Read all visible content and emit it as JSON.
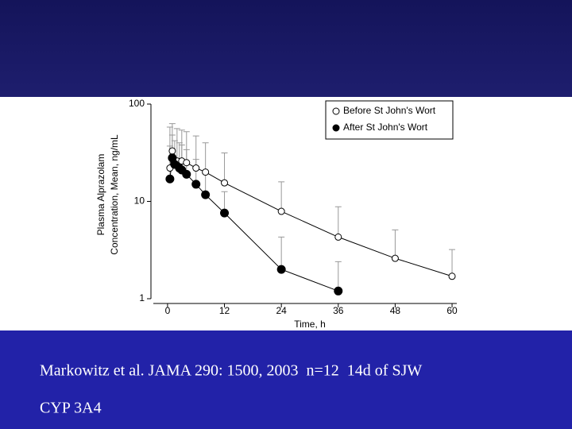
{
  "chart_data": {
    "type": "line",
    "y_label": [
      "Plasma Alprazolam",
      "Concentration, Mean, ng/mL"
    ],
    "x_label": "Time, h",
    "xlim": [
      -3,
      61
    ],
    "xticks": [
      0,
      12,
      24,
      36,
      48,
      60
    ],
    "ylim": [
      1,
      100
    ],
    "yticks": [
      1,
      10,
      100
    ],
    "log_y": true,
    "legend": "top-right",
    "series": [
      {
        "name": "Before St John's Wort",
        "color": "#000000",
        "marker": "open",
        "x": [
          0.5,
          1,
          2,
          3,
          4,
          6,
          8,
          12,
          24,
          36,
          48,
          60
        ],
        "values": [
          22,
          33,
          26,
          26,
          25,
          22,
          20,
          15.5,
          7.9,
          4.3,
          2.6,
          1.7
        ],
        "errors": [
          36,
          30,
          30,
          28,
          27,
          25,
          20,
          16,
          8,
          4.5,
          2.5,
          1.5
        ]
      },
      {
        "name": "After St John's Wort",
        "color": "#000000",
        "marker": "filled",
        "x": [
          0.5,
          1,
          1.5,
          2.5,
          3,
          4,
          6,
          8,
          12,
          24,
          36
        ],
        "values": [
          17,
          28,
          24,
          22,
          21,
          19,
          15,
          11.7,
          7.6,
          2.0,
          1.2
        ],
        "errors": [
          20,
          20,
          18,
          18,
          17,
          15,
          12,
          9,
          5,
          2.3,
          1.2
        ]
      }
    ]
  },
  "footer": [
    "Markowitz et al. JAMA 290: 1500, 2003  n=12  14d of SJW",
    "CYP 3A4"
  ]
}
